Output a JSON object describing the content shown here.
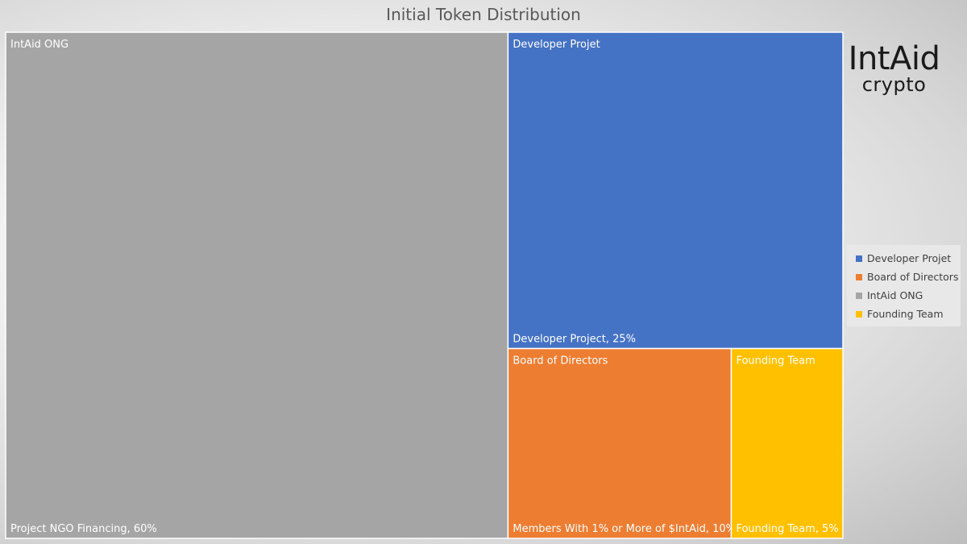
{
  "chart_data": {
    "type": "treemap",
    "title": "Initial Token Distribution",
    "groups": [
      {
        "name": "IntAid ONG",
        "color": "#a5a5a5",
        "items": [
          {
            "label": "Project NGO Financing, 60%",
            "value": 60
          }
        ]
      },
      {
        "name": "Developer Projet",
        "color": "#4472c4",
        "items": [
          {
            "label": "Developer Project, 25%",
            "value": 25
          }
        ]
      },
      {
        "name": "Board of Directors",
        "color": "#ed7d31",
        "items": [
          {
            "label": "Members With 1% or More of $IntAid, 10%",
            "value": 10
          }
        ]
      },
      {
        "name": "Founding Team",
        "color": "#ffc000",
        "items": [
          {
            "label": "Founding Team, 5%",
            "value": 5
          }
        ]
      }
    ],
    "legend": {
      "position": "right",
      "entries": [
        {
          "label": "Developer Projet",
          "color": "#4472c4"
        },
        {
          "label": "Board of Directors",
          "color": "#ed7d31"
        },
        {
          "label": "IntAid ONG",
          "color": "#a5a5a5"
        },
        {
          "label": "Founding Team",
          "color": "#ffc000"
        }
      ]
    }
  },
  "logo": {
    "main": "IntAid",
    "sub": "crypto"
  }
}
